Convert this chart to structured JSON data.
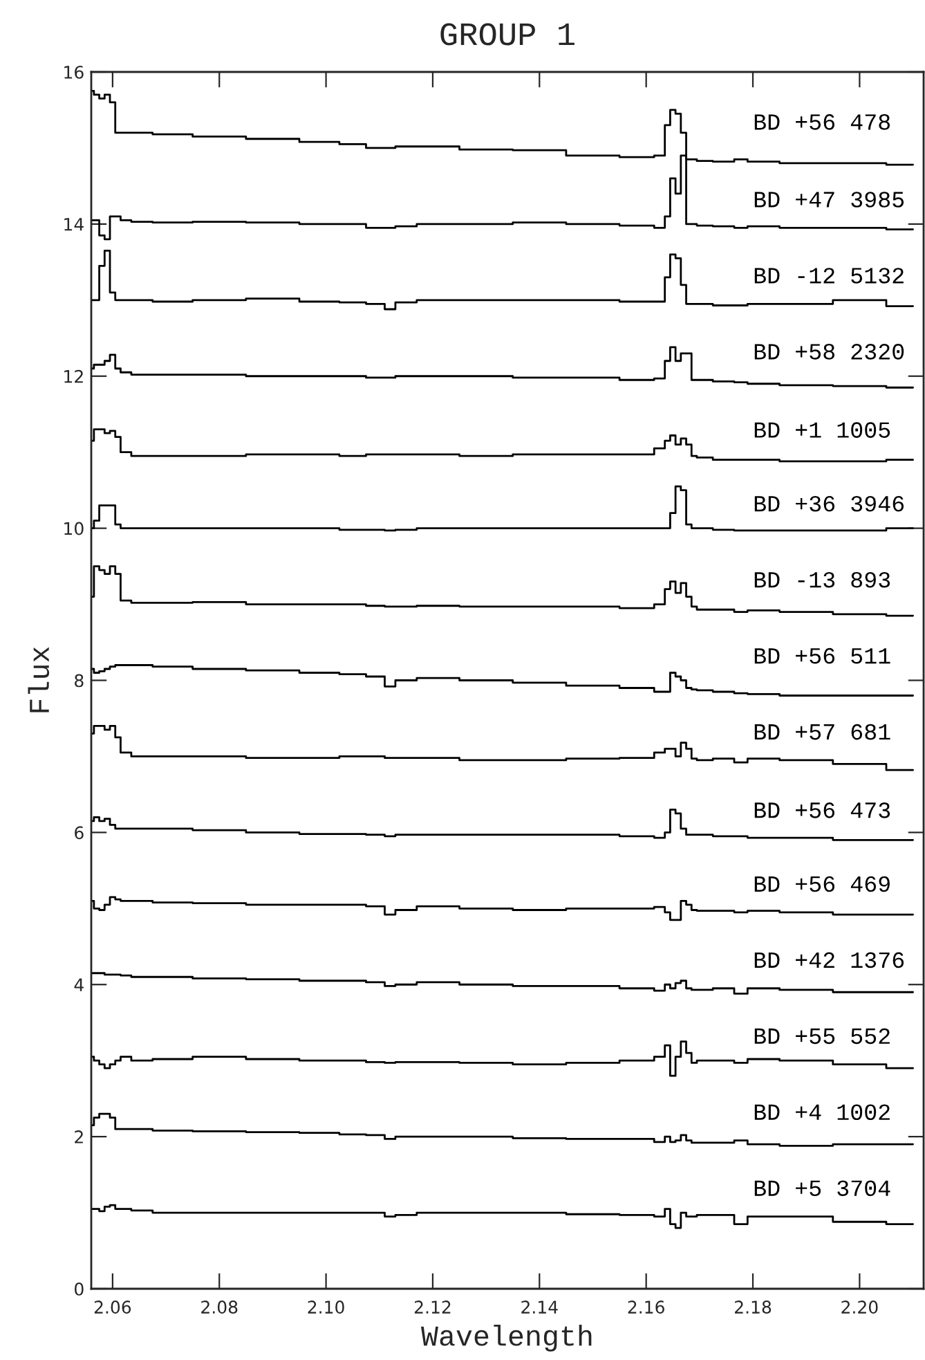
{
  "chart_data": {
    "type": "step",
    "title": "GROUP 1",
    "xlabel": "Wavelength",
    "ylabel": "Flux",
    "x": [
      2.056,
      2.057,
      2.058,
      2.059,
      2.06,
      2.061,
      2.062,
      2.065,
      2.07,
      2.08,
      2.09,
      2.1,
      2.105,
      2.11,
      2.112,
      2.114,
      2.12,
      2.13,
      2.14,
      2.15,
      2.16,
      2.163,
      2.164,
      2.165,
      2.166,
      2.167,
      2.168,
      2.169,
      2.17,
      2.175,
      2.178,
      2.18,
      2.19,
      2.2,
      2.21
    ],
    "xlim": [
      2.056,
      2.212
    ],
    "xticks": [
      2.06,
      2.08,
      {
        "value": 2.1,
        "label": "2.10"
      },
      2.12,
      2.14,
      2.16,
      2.18,
      {
        "value": 2.2,
        "label": "2.20"
      }
    ],
    "ylim": [
      0,
      16
    ],
    "yticks": [
      0,
      2,
      4,
      6,
      8,
      10,
      12,
      14,
      16
    ],
    "series": [
      {
        "name": "BD +56 478",
        "color": "#000000",
        "values": [
          15.75,
          15.7,
          15.65,
          15.7,
          15.6,
          15.2,
          15.2,
          15.2,
          15.18,
          15.15,
          15.12,
          15.08,
          15.05,
          15.0,
          15.0,
          15.02,
          15.02,
          14.98,
          14.97,
          14.9,
          14.88,
          14.9,
          15.3,
          15.5,
          15.45,
          15.2,
          14.85,
          14.85,
          14.83,
          14.82,
          14.85,
          14.82,
          14.8,
          14.8,
          14.78
        ]
      },
      {
        "name": "BD +47 3985",
        "color": "#000000",
        "values": [
          14.05,
          14.05,
          13.85,
          13.8,
          14.1,
          14.1,
          14.05,
          14.03,
          14.02,
          14.03,
          14.02,
          14.0,
          14.0,
          13.95,
          13.95,
          13.97,
          14.0,
          14.0,
          14.02,
          14.0,
          13.98,
          13.95,
          14.1,
          14.6,
          14.4,
          14.9,
          14.0,
          14.0,
          13.98,
          13.97,
          13.95,
          13.97,
          13.95,
          13.95,
          13.93
        ]
      },
      {
        "name": "BD -12 5132",
        "color": "#000000",
        "values": [
          13.0,
          13.0,
          13.45,
          13.65,
          13.1,
          13.0,
          13.0,
          13.0,
          12.98,
          13.0,
          13.02,
          12.98,
          12.97,
          12.95,
          12.88,
          12.97,
          13.0,
          13.0,
          13.0,
          13.0,
          12.98,
          12.98,
          13.3,
          13.6,
          13.55,
          13.2,
          12.95,
          12.95,
          12.95,
          12.93,
          12.93,
          12.95,
          12.95,
          13.0,
          12.92
        ]
      },
      {
        "name": "BD +58 2320",
        "color": "#000000",
        "values": [
          12.1,
          12.15,
          12.15,
          12.2,
          12.28,
          12.1,
          12.05,
          12.02,
          12.02,
          12.02,
          12.0,
          12.0,
          12.0,
          11.98,
          11.98,
          12.0,
          12.0,
          12.0,
          11.98,
          11.98,
          11.95,
          11.97,
          12.2,
          12.38,
          12.2,
          12.3,
          12.3,
          11.95,
          11.95,
          11.93,
          11.92,
          11.9,
          11.88,
          11.87,
          11.85
        ]
      },
      {
        "name": "BD +1 1005",
        "color": "#000000",
        "values": [
          11.15,
          11.3,
          11.3,
          11.25,
          11.28,
          11.2,
          11.0,
          10.95,
          10.95,
          10.95,
          10.97,
          10.97,
          10.95,
          10.97,
          10.97,
          10.97,
          10.97,
          10.95,
          10.97,
          10.97,
          10.97,
          11.05,
          11.15,
          11.22,
          11.1,
          11.18,
          11.1,
          10.95,
          10.93,
          10.9,
          10.9,
          10.9,
          10.88,
          10.88,
          10.9
        ]
      },
      {
        "name": "BD +36 3946",
        "color": "#000000",
        "values": [
          10.0,
          10.1,
          10.3,
          10.3,
          10.3,
          10.05,
          10.0,
          10.0,
          10.0,
          10.0,
          10.0,
          10.0,
          9.98,
          9.98,
          9.97,
          9.98,
          10.0,
          10.0,
          10.0,
          10.0,
          10.0,
          10.0,
          10.0,
          10.2,
          10.55,
          10.5,
          10.05,
          10.0,
          10.0,
          9.98,
          9.97,
          9.97,
          9.97,
          9.97,
          10.0
        ]
      },
      {
        "name": "BD -13 893",
        "color": "#000000",
        "values": [
          9.1,
          9.5,
          9.45,
          9.4,
          9.5,
          9.4,
          9.05,
          9.02,
          9.02,
          9.03,
          9.0,
          9.0,
          9.0,
          8.98,
          8.97,
          8.97,
          8.98,
          8.97,
          8.97,
          8.97,
          8.95,
          9.0,
          9.2,
          9.3,
          9.15,
          9.28,
          9.1,
          8.97,
          8.93,
          8.93,
          8.9,
          8.92,
          8.9,
          8.87,
          8.85
        ]
      },
      {
        "name": "BD +56 511",
        "color": "#000000",
        "values": [
          8.15,
          8.1,
          8.12,
          8.15,
          8.18,
          8.2,
          8.2,
          8.2,
          8.18,
          8.15,
          8.13,
          8.1,
          8.08,
          8.05,
          7.92,
          8.0,
          8.03,
          8.0,
          7.97,
          7.93,
          7.9,
          7.85,
          7.85,
          8.1,
          8.05,
          8.0,
          7.9,
          7.88,
          7.87,
          7.85,
          7.83,
          7.82,
          7.8,
          7.8,
          7.8
        ]
      },
      {
        "name": "BD +57 681",
        "color": "#000000",
        "values": [
          7.3,
          7.4,
          7.4,
          7.35,
          7.4,
          7.25,
          7.05,
          7.0,
          7.0,
          7.0,
          6.98,
          6.98,
          7.0,
          7.0,
          6.98,
          6.98,
          6.98,
          6.95,
          6.95,
          6.97,
          6.98,
          7.05,
          7.1,
          7.1,
          7.0,
          7.18,
          7.1,
          6.97,
          6.95,
          6.97,
          6.92,
          6.97,
          6.95,
          6.9,
          6.82
        ]
      },
      {
        "name": "BD +56 473",
        "color": "#000000",
        "values": [
          6.15,
          6.2,
          6.15,
          6.18,
          6.1,
          6.05,
          6.05,
          6.05,
          6.05,
          6.03,
          6.0,
          5.98,
          5.98,
          5.97,
          5.95,
          5.97,
          5.97,
          5.97,
          5.97,
          5.97,
          5.95,
          5.93,
          6.0,
          6.3,
          6.25,
          6.05,
          5.97,
          5.97,
          5.97,
          5.95,
          5.95,
          5.93,
          5.93,
          5.9,
          5.9
        ]
      },
      {
        "name": "BD +56 469",
        "color": "#000000",
        "values": [
          5.1,
          5.0,
          4.98,
          5.05,
          5.15,
          5.12,
          5.1,
          5.1,
          5.08,
          5.07,
          5.05,
          5.05,
          5.05,
          5.03,
          4.92,
          4.98,
          5.03,
          5.0,
          4.98,
          5.0,
          5.0,
          5.02,
          4.95,
          4.85,
          4.85,
          5.1,
          5.05,
          4.98,
          4.97,
          4.97,
          4.95,
          4.97,
          4.95,
          4.92,
          4.92
        ]
      },
      {
        "name": "BD +42 1376",
        "color": "#000000",
        "values": [
          4.15,
          4.15,
          4.15,
          4.13,
          4.13,
          4.13,
          4.12,
          4.1,
          4.1,
          4.08,
          4.07,
          4.05,
          4.05,
          4.03,
          3.98,
          4.0,
          4.03,
          4.0,
          3.98,
          3.98,
          3.95,
          3.92,
          4.0,
          3.95,
          4.02,
          4.05,
          3.95,
          3.93,
          3.93,
          3.95,
          3.88,
          3.95,
          3.93,
          3.9,
          3.9
        ]
      },
      {
        "name": "BD +55 552",
        "color": "#000000",
        "values": [
          3.05,
          3.0,
          2.95,
          2.9,
          2.95,
          3.0,
          3.05,
          3.0,
          3.02,
          3.05,
          3.02,
          3.0,
          3.0,
          2.98,
          2.97,
          2.98,
          2.98,
          2.97,
          2.95,
          2.97,
          3.0,
          3.05,
          3.2,
          2.8,
          3.05,
          3.25,
          3.1,
          2.97,
          3.0,
          3.0,
          2.97,
          3.02,
          3.0,
          2.95,
          2.9
        ]
      },
      {
        "name": "BD +4 1002",
        "color": "#000000",
        "values": [
          2.15,
          2.25,
          2.3,
          2.3,
          2.25,
          2.1,
          2.1,
          2.1,
          2.08,
          2.07,
          2.06,
          2.05,
          2.03,
          2.02,
          1.97,
          2.0,
          2.0,
          2.0,
          1.98,
          1.97,
          1.97,
          1.93,
          2.0,
          1.93,
          1.95,
          2.02,
          1.95,
          1.92,
          1.92,
          1.92,
          1.95,
          1.9,
          1.88,
          1.9,
          1.9
        ]
      },
      {
        "name": "BD +5 3704",
        "color": "#000000",
        "values": [
          1.05,
          1.05,
          1.02,
          1.08,
          1.1,
          1.05,
          1.05,
          1.03,
          1.0,
          1.0,
          1.0,
          1.0,
          1.0,
          1.0,
          0.95,
          0.97,
          1.0,
          1.0,
          1.0,
          0.98,
          0.97,
          0.95,
          1.05,
          0.85,
          0.8,
          1.0,
          0.95,
          0.95,
          0.97,
          0.97,
          0.85,
          0.95,
          0.95,
          0.88,
          0.85
        ]
      }
    ]
  }
}
